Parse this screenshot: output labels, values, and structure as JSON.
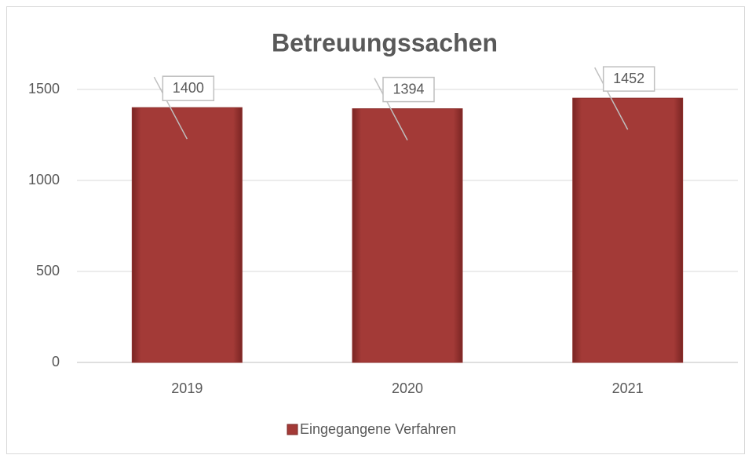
{
  "chart_data": {
    "type": "bar",
    "title": "Betreuungssachen",
    "categories": [
      "2019",
      "2020",
      "2021"
    ],
    "series": [
      {
        "name": "Eingegangene Verfahren",
        "color": "#a33a37",
        "values": [
          1400,
          1394,
          1452
        ]
      }
    ],
    "ylim": [
      0,
      1500
    ],
    "yticks": [
      0,
      500,
      1000,
      1500
    ],
    "grid": true,
    "legend": "bottom",
    "data_labels": true
  }
}
